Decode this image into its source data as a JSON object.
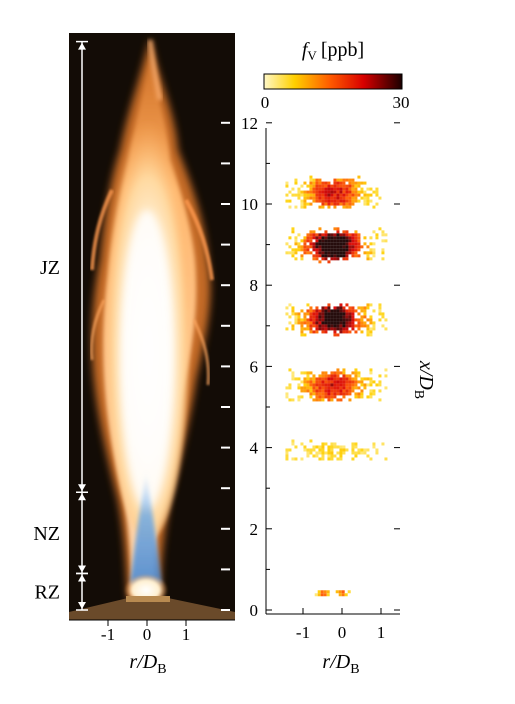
{
  "colorbar": {
    "label_var": "f",
    "label_sub": "V",
    "label_unit": "[ppb]",
    "min_label": "0",
    "max_label": "30",
    "colors": [
      "#fff8c8",
      "#ffd000",
      "#ff5a00",
      "#d80000",
      "#1a0000"
    ]
  },
  "zones": [
    {
      "label": "JZ",
      "x_from": 2.9,
      "x_to": 14.0
    },
    {
      "label": "NZ",
      "x_from": 0.9,
      "x_to": 2.9
    },
    {
      "label": "RZ",
      "x_from": 0.0,
      "x_to": 0.9
    }
  ],
  "left_axis": {
    "xlabel_var": "r/D",
    "xlabel_sub": "B",
    "ticks": [
      "-1",
      "0",
      "1"
    ]
  },
  "right_axis": {
    "xlabel_var": "r/D",
    "xlabel_sub": "B",
    "x_ticks": [
      "-1",
      "0",
      "1"
    ],
    "ylabel_var": "x/D",
    "ylabel_sub": "B",
    "y_ticks": [
      "0",
      "2",
      "4",
      "6",
      "8",
      "10",
      "12"
    ]
  },
  "soot_bands": [
    {
      "x_center": 10.3,
      "height": 0.8,
      "intensity": 0.45
    },
    {
      "x_center": 9.0,
      "height": 0.85,
      "intensity": 0.78
    },
    {
      "x_center": 7.2,
      "height": 0.85,
      "intensity": 0.72
    },
    {
      "x_center": 5.55,
      "height": 0.8,
      "intensity": 0.45
    },
    {
      "x_center": 3.95,
      "height": 0.5,
      "intensity": 0.06
    },
    {
      "x_center": 0.45,
      "height": 0.22,
      "intensity": 0.32
    }
  ]
}
